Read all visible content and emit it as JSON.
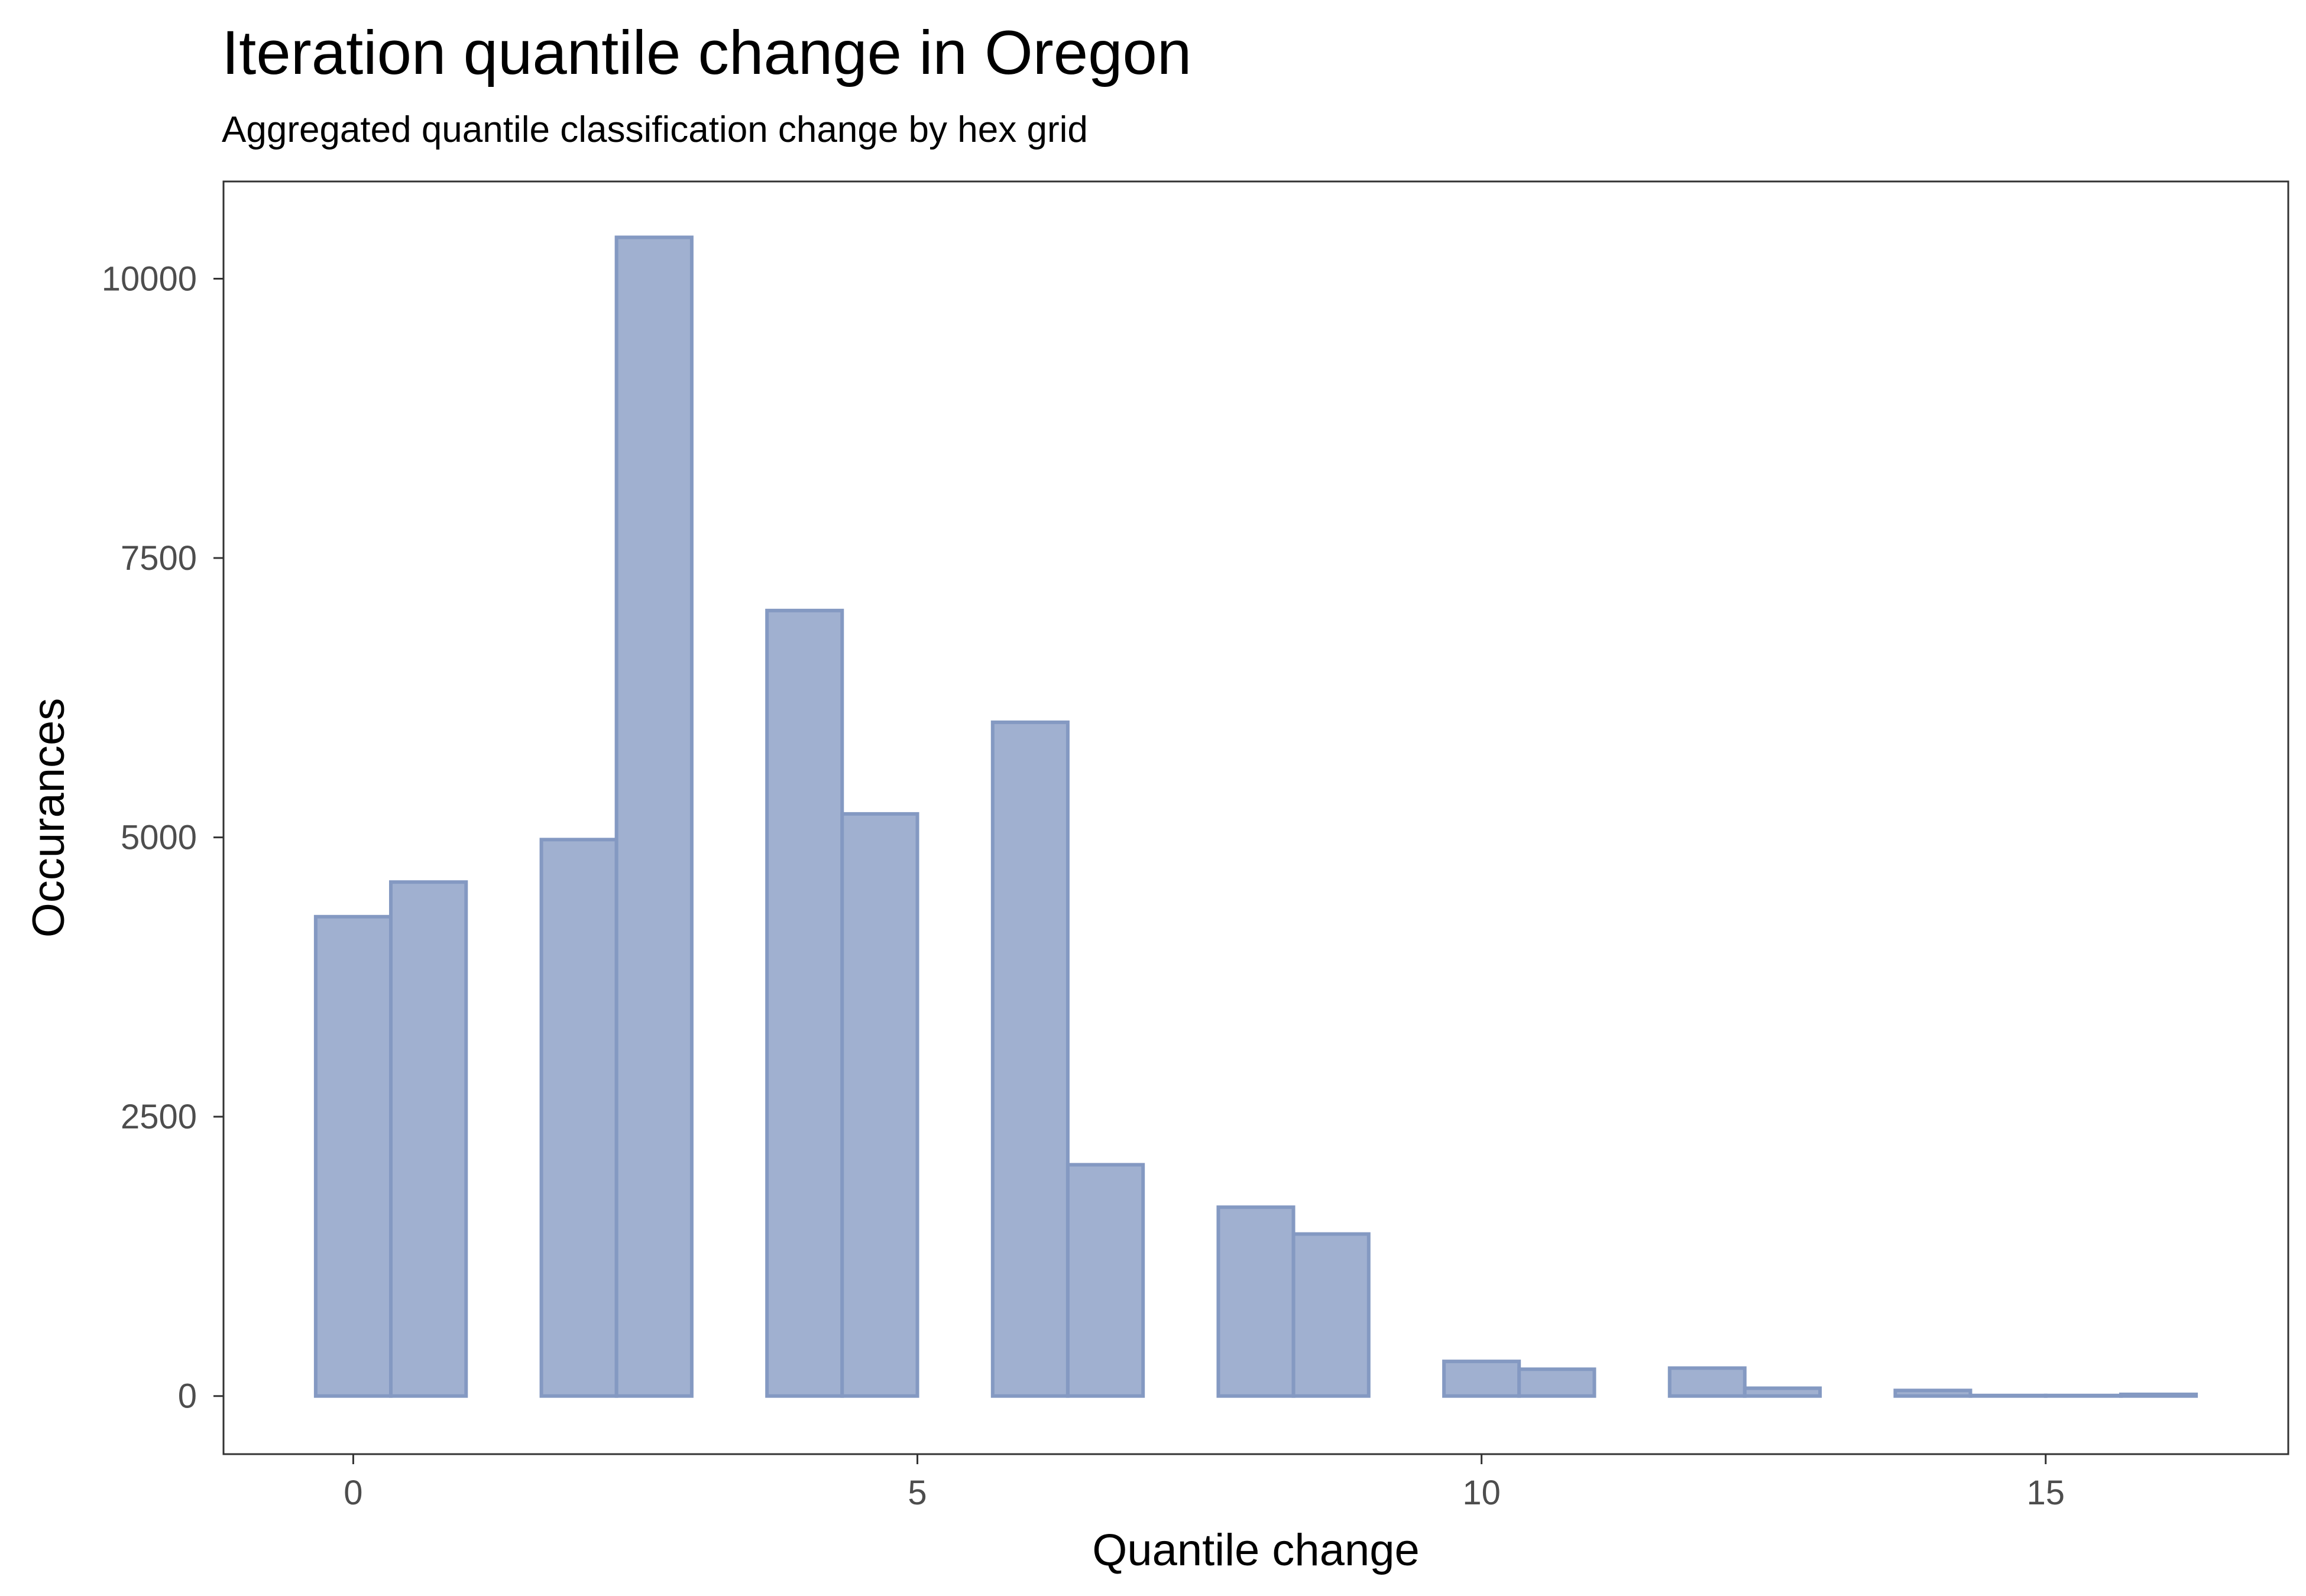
{
  "chart_data": {
    "type": "bar",
    "title": "Iteration quantile change in Oregon",
    "subtitle": "Aggregated quantile classification change by hex grid",
    "xlabel": "Quantile change",
    "ylabel": "Occurances",
    "xlim": [
      -1.15,
      17.15
    ],
    "ylim": [
      -520,
      10870
    ],
    "x_ticks": [
      0,
      5,
      10,
      15
    ],
    "x_tick_labels": [
      "0",
      "5",
      "10",
      "15"
    ],
    "y_ticks": [
      0,
      2500,
      5000,
      7500,
      10000
    ],
    "y_tick_labels": [
      "0",
      "2500",
      "5000",
      "7500",
      "10000"
    ],
    "bin_width": 0.667,
    "bins": [
      {
        "x0": -0.333,
        "x1": 0.333,
        "value": 4290
      },
      {
        "x0": 0.333,
        "x1": 1.0,
        "value": 4600
      },
      {
        "x0": 1.0,
        "x1": 1.667,
        "value": 0
      },
      {
        "x0": 1.667,
        "x1": 2.333,
        "value": 4980
      },
      {
        "x0": 2.333,
        "x1": 3.0,
        "value": 10370
      },
      {
        "x0": 3.0,
        "x1": 3.667,
        "value": 0
      },
      {
        "x0": 3.667,
        "x1": 4.333,
        "value": 7030
      },
      {
        "x0": 4.333,
        "x1": 5.0,
        "value": 5210
      },
      {
        "x0": 5.0,
        "x1": 5.667,
        "value": 0
      },
      {
        "x0": 5.667,
        "x1": 6.333,
        "value": 6030
      },
      {
        "x0": 6.333,
        "x1": 7.0,
        "value": 2070
      },
      {
        "x0": 7.0,
        "x1": 7.667,
        "value": 0
      },
      {
        "x0": 7.667,
        "x1": 8.333,
        "value": 1690
      },
      {
        "x0": 8.333,
        "x1": 9.0,
        "value": 1450
      },
      {
        "x0": 9.0,
        "x1": 9.667,
        "value": 0
      },
      {
        "x0": 9.667,
        "x1": 10.333,
        "value": 310
      },
      {
        "x0": 10.333,
        "x1": 11.0,
        "value": 240
      },
      {
        "x0": 11.0,
        "x1": 11.667,
        "value": 0
      },
      {
        "x0": 11.667,
        "x1": 12.333,
        "value": 250
      },
      {
        "x0": 12.333,
        "x1": 13.0,
        "value": 70
      },
      {
        "x0": 13.0,
        "x1": 13.667,
        "value": 0
      },
      {
        "x0": 13.667,
        "x1": 14.333,
        "value": 50
      },
      {
        "x0": 14.333,
        "x1": 15.0,
        "value": 5
      },
      {
        "x0": 15.0,
        "x1": 15.667,
        "value": 5
      },
      {
        "x0": 15.667,
        "x1": 16.333,
        "value": 15
      }
    ],
    "bar_fill": "#a0b0d0",
    "bar_stroke": "#8499c2",
    "grid": false,
    "legend": "none"
  }
}
